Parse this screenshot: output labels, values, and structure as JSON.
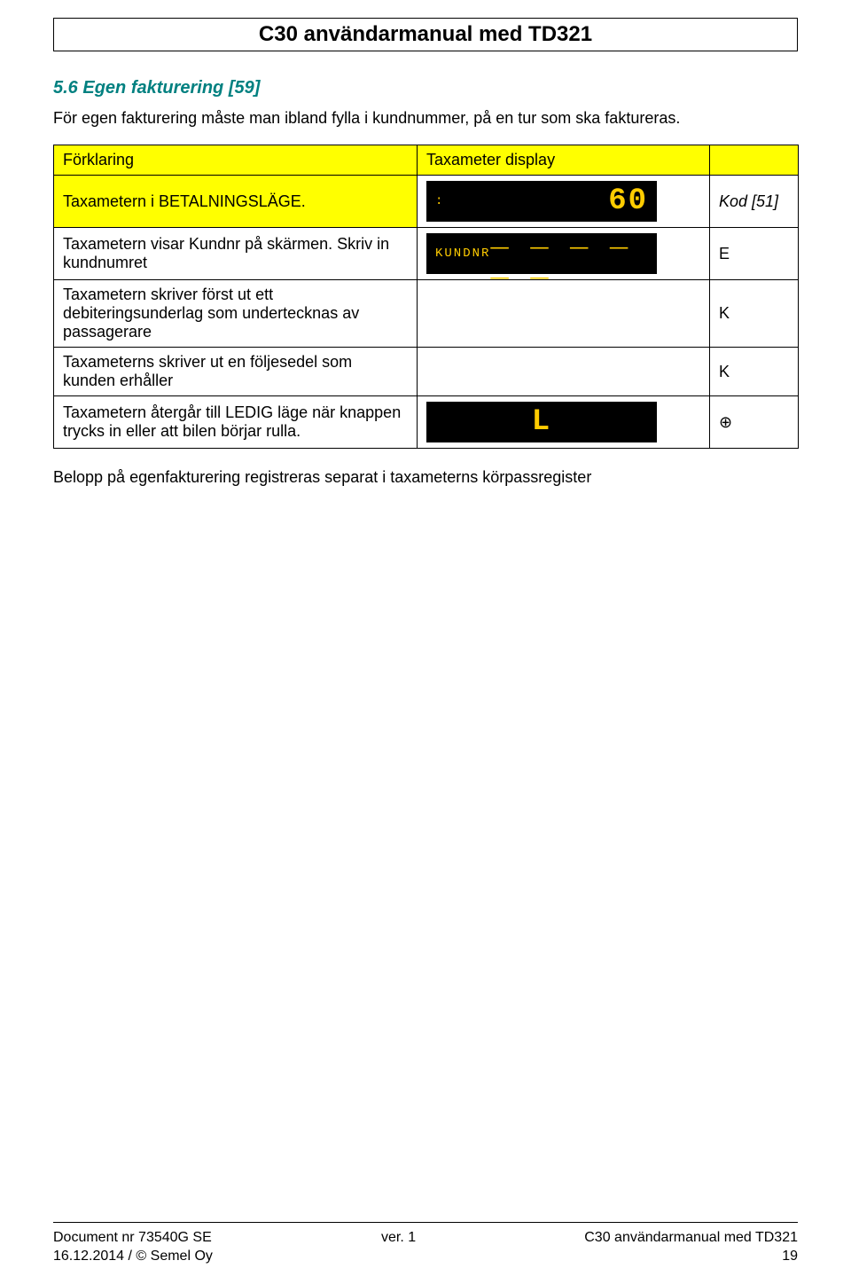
{
  "header": {
    "title": "C30 användarmanual med TD321"
  },
  "section": {
    "heading": "5.6 Egen fakturering [59]",
    "intro": "För egen fakturering måste man ibland fylla i kundnummer, på en tur som ska faktureras."
  },
  "table": {
    "headers": {
      "explain": "Förklaring",
      "display": "Taxameter display",
      "blank": ""
    },
    "rows": [
      {
        "explain": "Taxametern i BETALNINGSLÄGE.",
        "display": {
          "type": "lcd",
          "left": ":",
          "right": "60",
          "width": "w1"
        },
        "code": "Kod [51]",
        "code_italic": true,
        "header_bg": true
      },
      {
        "explain": "Taxametern visar Kundnr på skärmen. Skriv in kundnumret",
        "display": {
          "type": "lcd",
          "left": "KUNDNR",
          "right": "_ _ _ _ _ _",
          "width": "w2"
        },
        "code": "E"
      },
      {
        "explain": "Taxametern skriver först ut ett debiteringsunderlag som undertecknas av passagerare",
        "display": {
          "type": "blank"
        },
        "code": "K"
      },
      {
        "explain": "Taxameterns skriver ut en följesedel som kunden erhåller",
        "display": {
          "type": "blank"
        },
        "code": "K"
      },
      {
        "explain": "Taxametern återgår till LEDIG läge när knappen trycks in eller att bilen börjar rulla.",
        "display": {
          "type": "lcd",
          "left": "",
          "right": "L",
          "width": "w3",
          "center": true
        },
        "code": "⊕",
        "code_compass": true
      }
    ]
  },
  "footnote": "Belopp på egenfakturering registreras separat i taxameterns körpassregister",
  "footer": {
    "left1": "Document nr 73540G    SE",
    "left2": "16.12.2014 / © Semel Oy",
    "center": "ver. 1",
    "right1": "C30 användarmanual med TD321",
    "right2": "19"
  },
  "colors": {
    "highlight_bg": "#ffff00",
    "lcd_bg": "#000000",
    "lcd_fg": "#ffcc00",
    "heading_color": "#008080"
  }
}
